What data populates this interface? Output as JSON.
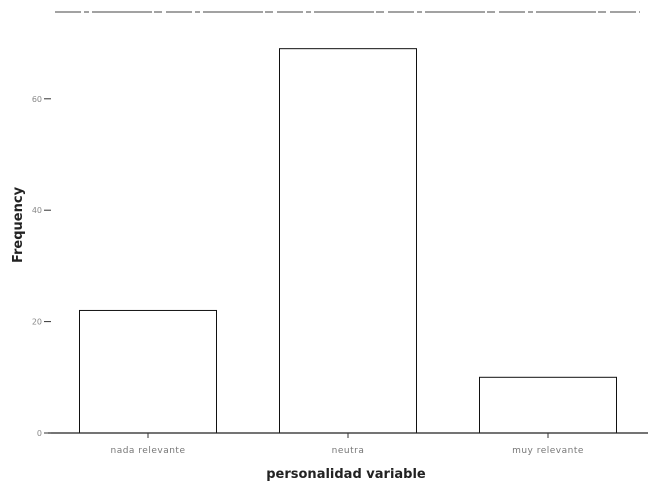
{
  "chart_data": {
    "type": "bar",
    "style": "outline",
    "categories": [
      "nada relevante",
      "neutra",
      "muy relevante"
    ],
    "values": [
      22,
      69,
      10
    ],
    "xlabel": "personalidad variable",
    "ylabel": "Frequency",
    "ylim": [
      0,
      72
    ],
    "yticks": [
      0,
      20,
      40,
      60
    ],
    "grid": false,
    "legend": "none",
    "colors": {
      "outline": "#111111",
      "axis": "#222222",
      "background": "#ffffff"
    }
  }
}
